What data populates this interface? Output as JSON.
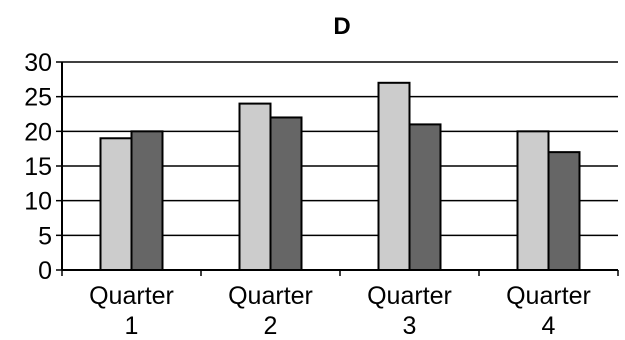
{
  "chart_data": {
    "type": "bar",
    "title": "D",
    "xlabel": "",
    "ylabel": "",
    "categories": [
      [
        "Quarter",
        "1"
      ],
      [
        "Quarter",
        "2"
      ],
      [
        "Quarter",
        "3"
      ],
      [
        "Quarter",
        "4"
      ]
    ],
    "series": [
      {
        "color": "#cccccc",
        "values": [
          19,
          24,
          27,
          20
        ]
      },
      {
        "color": "#666666",
        "values": [
          20,
          22,
          21,
          17
        ]
      }
    ],
    "ylim": [
      0,
      30
    ],
    "yticks": [
      "0",
      "5",
      "10",
      "15",
      "20",
      "25",
      "30"
    ],
    "grid": true,
    "legend": "none"
  }
}
